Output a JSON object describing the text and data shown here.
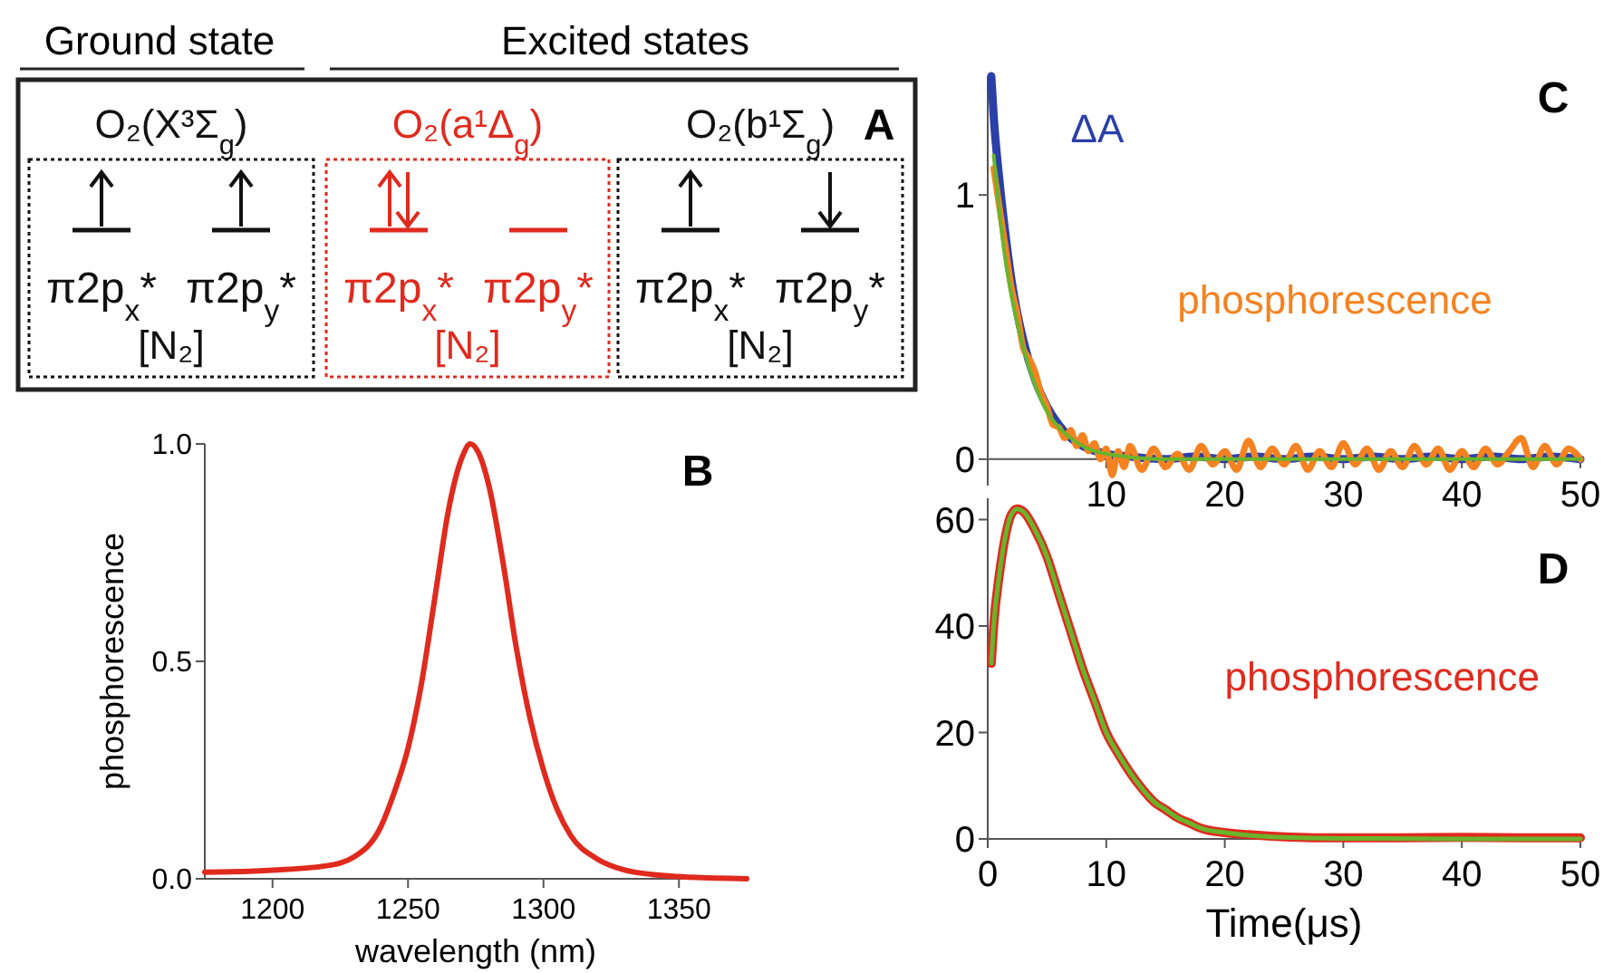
{
  "chart_data": [
    {
      "type": "other",
      "title": "A",
      "annotations": [
        "Ground state",
        "Excited states",
        "O₂(X³Σ$_{g}$)",
        "π2p$_{x}$*",
        "π2p$_{y}$*",
        "[N₂]",
        "O₂(a¹Δ$_{g}$)",
        "π2p$_{x}$*",
        "π2p$_{y}$*",
        "[N₂]",
        "O₂(b¹Σ$_{g}$)",
        "π2p$_{x}$*",
        "π2p$_{y}$*",
        "[N₂]"
      ]
    },
    {
      "type": "line",
      "title": "B",
      "xlabel": "wavelength (nm)",
      "ylabel": "phosphorescence",
      "xlim": [
        1175,
        1375
      ],
      "ylim": [
        0,
        1
      ],
      "xticks": [
        1200,
        1250,
        1300,
        1350
      ],
      "yticks": [
        "0.0",
        {
          "value": 0.5,
          "label": "0.5"
        },
        {
          "value": 1,
          "label": "1.0"
        }
      ],
      "series": [
        {
          "color": "#e02a1e",
          "x": [
            1175,
            1200,
            1220,
            1230,
            1240,
            1245,
            1250,
            1255,
            1260,
            1265,
            1270,
            1273,
            1276,
            1280,
            1285,
            1290,
            1295,
            1300,
            1305,
            1310,
            1320,
            1330,
            1340,
            1350,
            1375
          ],
          "values": [
            0.015,
            0.02,
            0.03,
            0.05,
            0.12,
            0.2,
            0.3,
            0.45,
            0.65,
            0.85,
            0.97,
            1.0,
            0.98,
            0.9,
            0.73,
            0.53,
            0.37,
            0.25,
            0.16,
            0.1,
            0.045,
            0.02,
            0.01,
            0.005,
            0.0
          ]
        }
      ]
    },
    {
      "type": "line",
      "title": "C",
      "xlim": [
        0,
        50
      ],
      "ylim": [
        -0.1,
        1.45
      ],
      "xticks": [
        {
          "value": 0,
          "label": null
        },
        10,
        20,
        30,
        40,
        50
      ],
      "yticks": [
        0,
        1
      ],
      "series": [
        {
          "name": "ΔA",
          "color": "#2b3fa8",
          "x": [
            0.3,
            0.5,
            1,
            1.5,
            2,
            3,
            4,
            5,
            6,
            7,
            8,
            10,
            12,
            15,
            17.5,
            20,
            22.5,
            25,
            27.5,
            30,
            32.5,
            35,
            37.5,
            40,
            42.5,
            45,
            47.5,
            50
          ],
          "values": [
            1.45,
            1.3,
            1.05,
            0.85,
            0.68,
            0.45,
            0.3,
            0.2,
            0.13,
            0.08,
            0.05,
            0.02,
            0.01,
            0.0,
            0.01,
            0.0,
            0.01,
            0.0,
            0.01,
            0.0,
            0.01,
            0.0,
            0.01,
            0.0,
            0.01,
            0.0,
            0.01,
            0.0
          ]
        },
        {
          "name": "phosphorescence",
          "color": "#f58220",
          "x": [
            0.5,
            1,
            1.5,
            2,
            2.5,
            3,
            3.5,
            4,
            4.5,
            5,
            5.5,
            6,
            6.5,
            7,
            7.5,
            8,
            8.5,
            9,
            9.5,
            10,
            10.5,
            11,
            11.5,
            12,
            13,
            14,
            15,
            16,
            17,
            18,
            19,
            20,
            21,
            22,
            23,
            24,
            25,
            26,
            27,
            28,
            29,
            30,
            31,
            32,
            33,
            34,
            35,
            36,
            37,
            38,
            39,
            40,
            41,
            42,
            43,
            44,
            45,
            46,
            47,
            48,
            49,
            50
          ],
          "values": [
            1.1,
            0.95,
            0.8,
            0.65,
            0.55,
            0.42,
            0.38,
            0.33,
            0.25,
            0.2,
            0.13,
            0.12,
            0.08,
            0.11,
            0.05,
            0.09,
            0.03,
            0.06,
            0.0,
            0.04,
            -0.06,
            0.03,
            -0.03,
            0.05,
            -0.04,
            0.04,
            -0.03,
            0.02,
            -0.04,
            0.05,
            -0.02,
            0.03,
            -0.04,
            0.07,
            -0.03,
            0.04,
            -0.02,
            0.05,
            -0.04,
            0.03,
            -0.03,
            0.06,
            -0.02,
            0.04,
            -0.04,
            0.03,
            -0.03,
            0.05,
            -0.02,
            0.04,
            -0.04,
            0.03,
            -0.03,
            0.04,
            -0.02,
            0.03,
            0.08,
            -0.03,
            0.05,
            -0.02,
            0.04,
            0.0
          ]
        },
        {
          "color": "#6ab42d",
          "x": [
            0.5,
            1,
            1.5,
            2,
            3,
            4,
            5,
            6,
            7,
            8,
            10,
            15,
            50
          ],
          "values": [
            1.15,
            0.93,
            0.75,
            0.62,
            0.42,
            0.28,
            0.18,
            0.12,
            0.08,
            0.05,
            0.02,
            0.0,
            0.0
          ]
        }
      ]
    },
    {
      "type": "line",
      "title": "D",
      "xlabel": "Time(μs)",
      "xlim": [
        0,
        50
      ],
      "ylim": [
        0,
        64
      ],
      "xticks": [
        0,
        10,
        20,
        30,
        40,
        50
      ],
      "yticks": [
        0,
        20,
        40,
        60
      ],
      "series": [
        {
          "name": "phosphorescence",
          "color": "#e02a1e",
          "x": [
            0.3,
            0.5,
            1,
            1.5,
            2,
            2.5,
            3,
            4,
            5,
            6,
            7,
            8,
            9,
            10,
            11,
            12,
            13,
            14,
            15,
            16,
            17,
            18,
            20,
            22,
            25,
            30,
            35,
            40,
            45,
            50
          ],
          "values": [
            33,
            40,
            50,
            57,
            61,
            62,
            61.5,
            58,
            53,
            46,
            39,
            32,
            26,
            20,
            16,
            12.5,
            9.5,
            7,
            5.5,
            4,
            3,
            2,
            1.2,
            0.8,
            0.4,
            0.2,
            0.2,
            0.3,
            0.2,
            0.2
          ]
        },
        {
          "color": "#6ab42d",
          "x": [
            0.3,
            0.5,
            1,
            1.5,
            2,
            2.5,
            3,
            4,
            5,
            6,
            7,
            8,
            9,
            10,
            11,
            12,
            13,
            14,
            15,
            16,
            17,
            18,
            20,
            22,
            25,
            30,
            40,
            50
          ],
          "values": [
            33,
            40,
            50,
            57,
            61,
            62,
            61.5,
            58,
            53,
            46,
            39,
            32,
            26,
            20,
            16,
            12.5,
            9.5,
            7,
            5.5,
            4,
            3,
            2,
            1.2,
            0.7,
            0.3,
            0.1,
            0.0,
            0.0
          ]
        }
      ]
    }
  ]
}
